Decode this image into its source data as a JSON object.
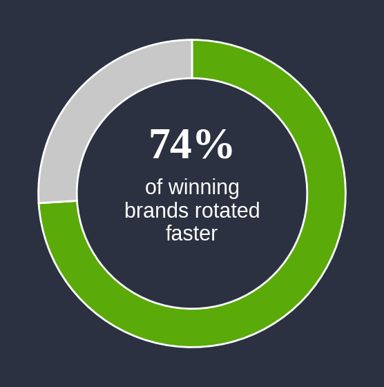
{
  "chart_data": {
    "type": "pie",
    "values": [
      74,
      26
    ],
    "colors": [
      "#5aaa0a",
      "#c8c8c8"
    ],
    "center_label": "74%",
    "annotation": "of winning brands rotated faster"
  }
}
